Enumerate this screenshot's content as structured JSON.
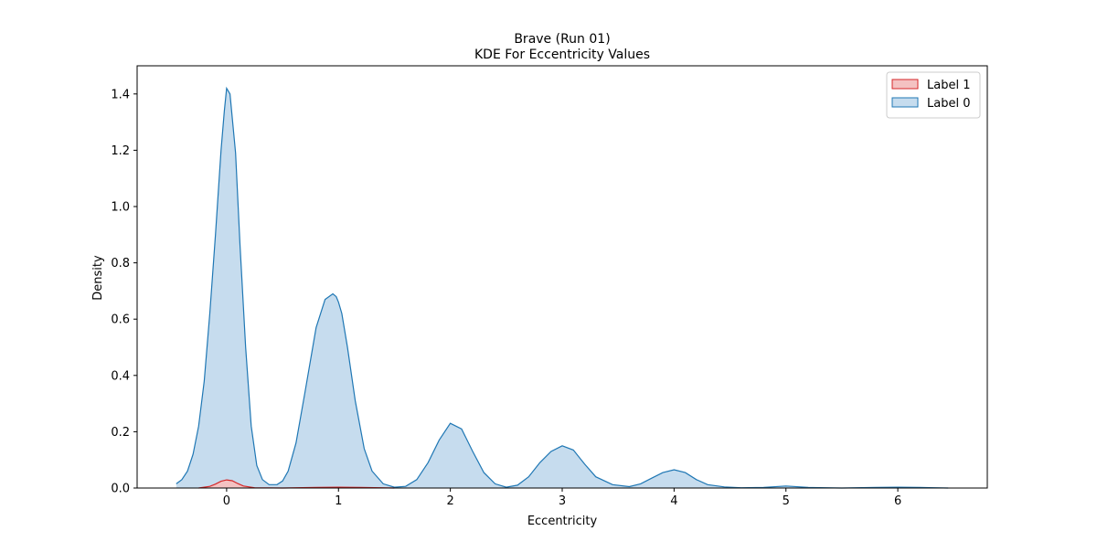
{
  "chart_data": {
    "type": "area",
    "title": "Brave (Run 01)",
    "subtitle": "KDE For Eccentricity Values",
    "xlabel": "Eccentricity",
    "ylabel": "Density",
    "xlim": [
      -0.8,
      6.8
    ],
    "ylim": [
      0,
      1.5
    ],
    "x_ticks": [
      "0",
      "1",
      "2",
      "3",
      "4",
      "5",
      "6"
    ],
    "y_ticks": [
      "0.0",
      "0.2",
      "0.4",
      "0.6",
      "0.8",
      "1.0",
      "1.2",
      "1.4"
    ],
    "grid": false,
    "legend_position": "top-right",
    "series": [
      {
        "name": "Label 1",
        "color": "#d62728",
        "fill": "#f4c2c2",
        "x": [
          -0.25,
          -0.15,
          -0.1,
          -0.05,
          0.0,
          0.05,
          0.1,
          0.15,
          0.25,
          0.5,
          0.8,
          1.0,
          1.2,
          1.5
        ],
        "y": [
          0.0,
          0.006,
          0.014,
          0.024,
          0.029,
          0.026,
          0.016,
          0.007,
          0.001,
          0.0,
          0.002,
          0.003,
          0.002,
          0.0
        ]
      },
      {
        "name": "Label 0",
        "color": "#1f77b4",
        "fill": "#c6dcee",
        "x": [
          -0.45,
          -0.4,
          -0.35,
          -0.3,
          -0.25,
          -0.2,
          -0.15,
          -0.1,
          -0.05,
          -0.02,
          0.0,
          0.03,
          0.08,
          0.12,
          0.17,
          0.22,
          0.27,
          0.32,
          0.38,
          0.45,
          0.5,
          0.55,
          0.62,
          0.7,
          0.8,
          0.88,
          0.95,
          0.98,
          1.0,
          1.03,
          1.08,
          1.15,
          1.23,
          1.3,
          1.4,
          1.5,
          1.6,
          1.7,
          1.8,
          1.9,
          2.0,
          2.1,
          2.2,
          2.3,
          2.4,
          2.5,
          2.6,
          2.7,
          2.8,
          2.9,
          3.0,
          3.1,
          3.2,
          3.3,
          3.45,
          3.6,
          3.7,
          3.8,
          3.9,
          4.0,
          4.1,
          4.2,
          4.3,
          4.45,
          4.6,
          4.8,
          4.95,
          5.0,
          5.05,
          5.2,
          5.5,
          5.8,
          6.0,
          6.2,
          6.45
        ],
        "y": [
          0.015,
          0.03,
          0.06,
          0.12,
          0.22,
          0.38,
          0.62,
          0.9,
          1.2,
          1.34,
          1.42,
          1.4,
          1.19,
          0.86,
          0.5,
          0.22,
          0.08,
          0.03,
          0.012,
          0.012,
          0.025,
          0.06,
          0.16,
          0.34,
          0.57,
          0.67,
          0.69,
          0.68,
          0.66,
          0.62,
          0.5,
          0.31,
          0.14,
          0.06,
          0.015,
          0.003,
          0.006,
          0.03,
          0.09,
          0.17,
          0.23,
          0.21,
          0.13,
          0.055,
          0.015,
          0.003,
          0.01,
          0.04,
          0.09,
          0.13,
          0.15,
          0.135,
          0.085,
          0.04,
          0.012,
          0.005,
          0.015,
          0.035,
          0.055,
          0.065,
          0.055,
          0.03,
          0.012,
          0.004,
          0.001,
          0.002,
          0.006,
          0.007,
          0.006,
          0.002,
          0.0,
          0.002,
          0.003,
          0.002,
          0.0
        ]
      }
    ]
  }
}
